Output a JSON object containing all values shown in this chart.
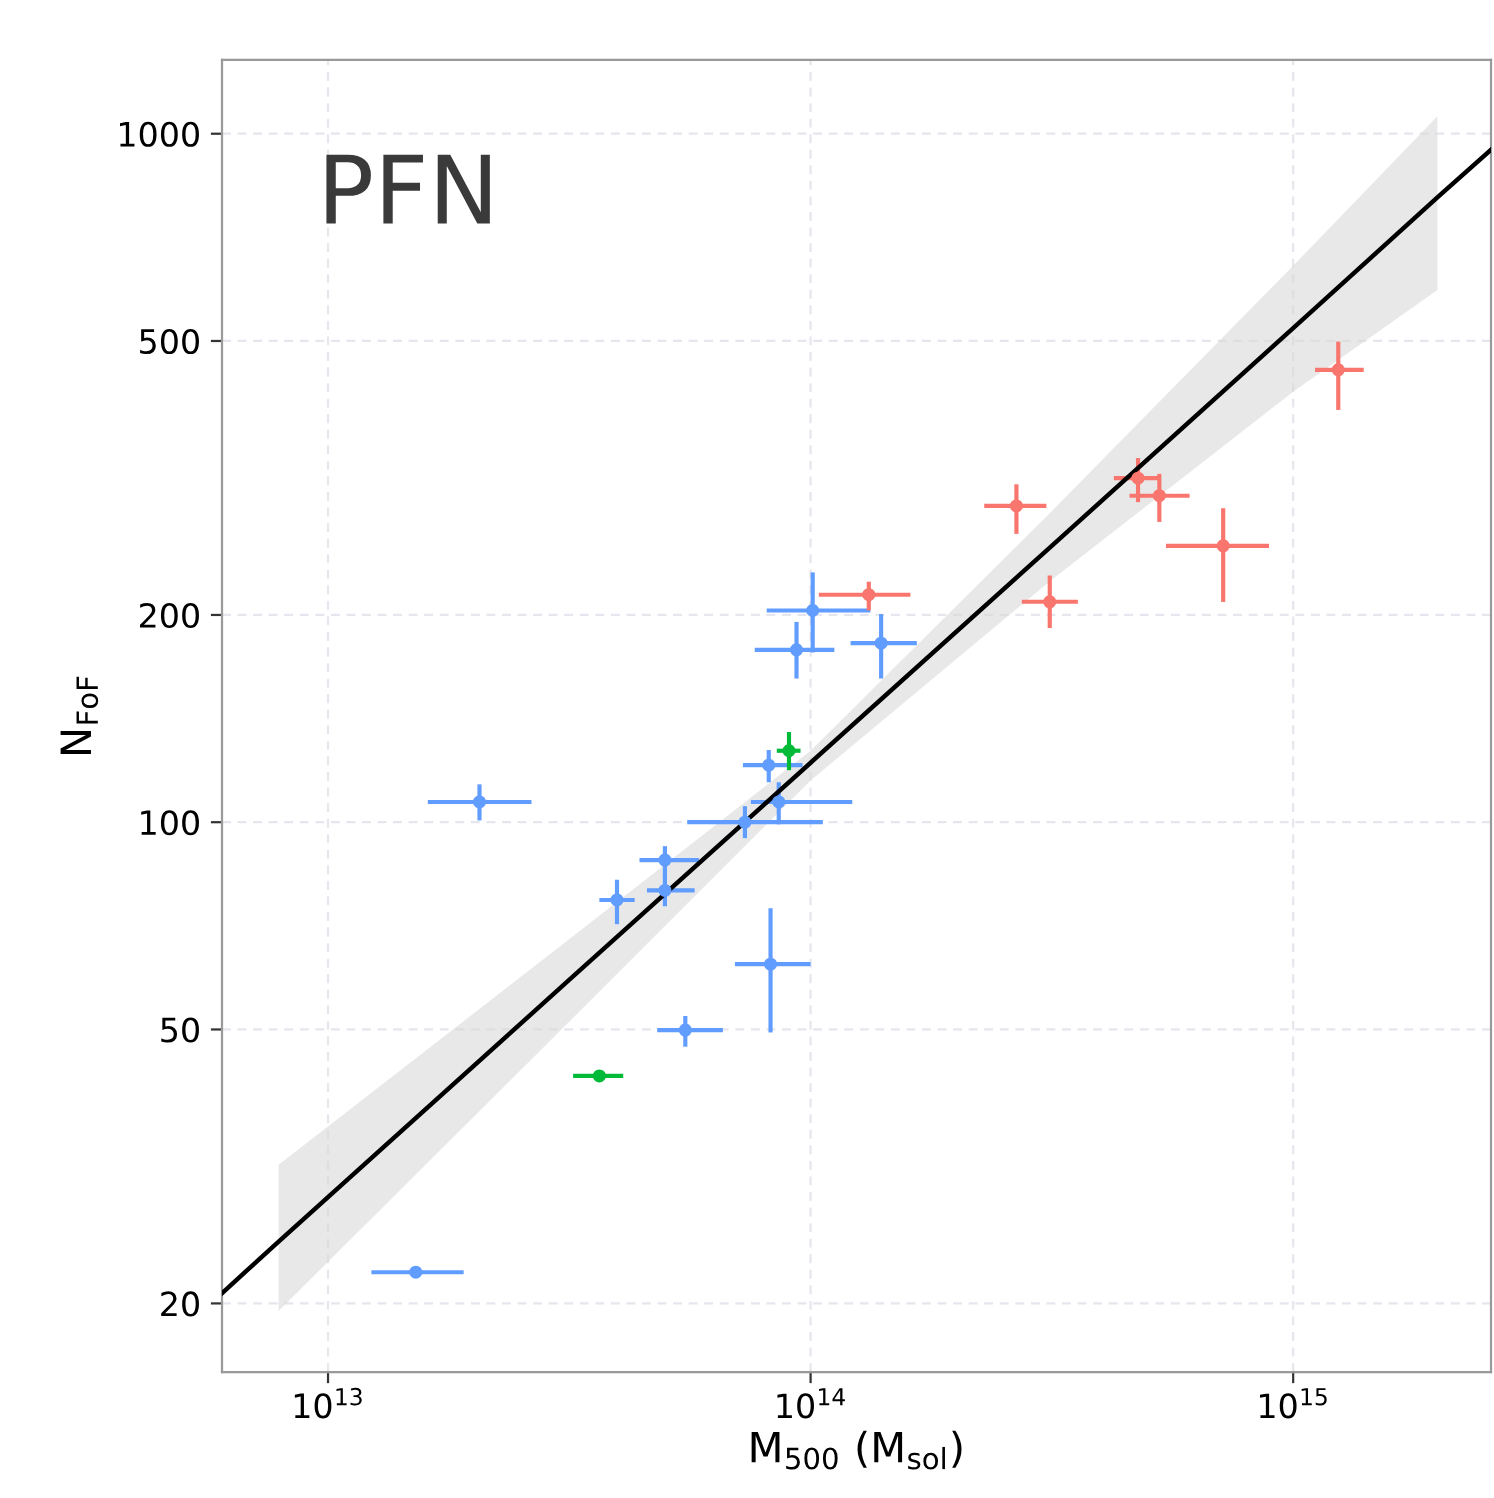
{
  "chart_data": {
    "type": "scatter",
    "xlabel": "M$_{500}$ (M$_{sol}$)",
    "ylabel": "N$_{FoF}$",
    "annotations": [
      "PFN"
    ],
    "log": "xy",
    "grid": true,
    "xlim": [
      6030000000000.0,
      2570000000000000.0
    ],
    "ylim": [
      15.9,
      1280
    ],
    "xticks": [
      {
        "value": 10000000000000.0,
        "label": "10$^{13}$"
      },
      {
        "value": 100000000000000.0,
        "label": "10$^{14}$"
      },
      {
        "value": 1000000000000000.0,
        "label": "10$^{15}$"
      }
    ],
    "yticks": [
      20,
      50,
      100,
      200,
      500,
      1000
    ],
    "series": [
      {
        "type": "line",
        "marker": "none",
        "color": "#000000",
        "x": [
          6030000000000.0,
          7900000000000.0,
          31600000000000.0,
          100000000000000.0,
          316000000000000.0,
          1000000000000000.0,
          1990000000000000.0,
          2570000000000000.0
        ],
        "values": [
          20.7,
          24.6,
          59.0,
          122,
          252,
          522,
          808,
          948
        ],
        "lower": [
          null,
          19.5,
          51.3,
          115,
          225,
          422,
          593,
          null
        ],
        "upper": [
          null,
          31.8,
          67.6,
          127,
          283,
          643,
          1060,
          null
        ]
      },
      {
        "marker": "circle",
        "color": "#619cff",
        "x": [
          15200000000000.0,
          20600000000000.0,
          39700000000000.0,
          49900000000000.0,
          49900000000000.0,
          55000000000000.0,
          73100000000000.0,
          81900000000000.0,
          85900000000000.0,
          82600000000000.0,
          101000000000000.0,
          93500000000000.0,
          140000000000000.0
        ],
        "values": [
          22.2,
          107,
          77.1,
          88.1,
          79.6,
          49.9,
          100,
          121,
          107,
          62.2,
          203,
          178,
          182
        ],
        "xerrors": [
          [
            12300000000000.0,
            19100000000000.0
          ],
          [
            16100000000000.0,
            26400000000000.0
          ],
          [
            36500000000000.0,
            43200000000000.0
          ],
          [
            44200000000000.0,
            58700000000000.0
          ],
          [
            45800000000000.0,
            57500000000000.0
          ],
          [
            48100000000000.0,
            65800000000000.0
          ],
          [
            55500000000000.0,
            106000000000000.0
          ],
          [
            72400000000000.0,
            96200000000000.0
          ],
          [
            75200000000000.0,
            122000000000000.0
          ],
          [
            69700000000000.0,
            100000000000000.0
          ],
          [
            81100000000000.0,
            133000000000000.0
          ],
          [
            76600000000000.0,
            112000000000000.0
          ],
          [
            121000000000000.0,
            166000000000000.0
          ]
        ],
        "errors": [
          null,
          [
            100.6,
            113.5
          ],
          [
            71.1,
            82.5
          ],
          [
            83.5,
            92.3
          ],
          [
            75.5,
            84.0
          ],
          [
            47.2,
            52.3
          ],
          [
            94.8,
            105.5
          ],
          [
            114.3,
            127.3
          ],
          [
            99.3,
            114.3
          ],
          [
            49.5,
            75.0
          ],
          [
            176.4,
            230.6
          ],
          [
            161.7,
            195.4
          ],
          [
            161.7,
            200.6
          ]
        ]
      },
      {
        "marker": "circle",
        "color": "#00ba38",
        "x": [
          36500000000000.0,
          90200000000000.0
        ],
        "values": [
          42.8,
          127
        ],
        "xerrors": [
          [
            32200000000000.0,
            40900000000000.0
          ],
          [
            85100000000000.0,
            95300000000000.0
          ]
        ],
        "errors": [
          null,
          [
            119.0,
            135.2
          ]
        ]
      },
      {
        "marker": "circle",
        "color": "#f8766d",
        "x": [
          132000000000000.0,
          267000000000000.0,
          313000000000000.0,
          477000000000000.0,
          528000000000000.0,
          716000000000000.0,
          1240000000000000.0
        ],
        "values": [
          214,
          288,
          209,
          316,
          298,
          252,
          454
        ],
        "xerrors": [
          [
            104000000000000.0,
            161000000000000.0
          ],
          [
            229000000000000.0,
            308000000000000.0
          ],
          [
            274000000000000.0,
            358000000000000.0
          ],
          [
            425000000000000.0,
            528000000000000.0
          ],
          [
            458000000000000.0,
            610000000000000.0
          ],
          [
            545000000000000.0,
            891000000000000.0
          ],
          [
            1110000000000000.0,
            1400000000000000.0
          ]
        ],
        "errors": [
          [
            203.1,
            223.5
          ],
          [
            262.3,
            309.6
          ],
          [
            191.4,
            228.2
          ],
          [
            291.7,
            338
          ],
          [
            273.0,
            320.6
          ],
          [
            208.9,
            285.8
          ],
          [
            397,
            499
          ]
        ]
      }
    ]
  }
}
